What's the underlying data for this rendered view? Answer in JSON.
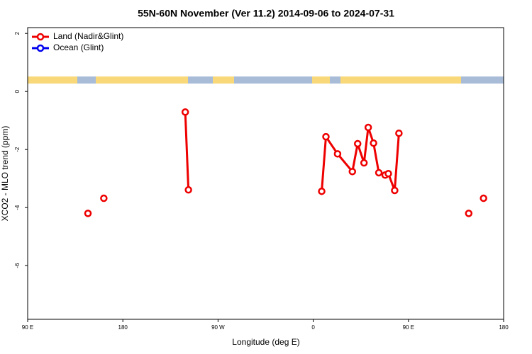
{
  "chart_data": {
    "type": "line",
    "title": "55N-60N November (Ver 11.2)   2014-09-06 to 2024-07-31",
    "xlabel": "Longitude (deg E)",
    "ylabel": "XCO2 - MLO trend (ppm)",
    "xlim": [
      -270,
      180
    ],
    "ylim": [
      -7.85,
      2.2
    ],
    "xticks": [
      {
        "value": -270,
        "label": "90 E"
      },
      {
        "value": -180,
        "label": "180"
      },
      {
        "value": -90,
        "label": "90 W"
      },
      0,
      {
        "value": 90,
        "label": "90 E"
      },
      180
    ],
    "yticks": [
      2,
      0,
      -2,
      -4,
      -6
    ],
    "legend": "top-left",
    "series": [
      {
        "name": "Land (Nadir&Glint)",
        "color": "#ee0000",
        "x": [
          -213,
          null,
          -198,
          null,
          -121,
          -118,
          null,
          8,
          12,
          23,
          37,
          42,
          48,
          52,
          57,
          62,
          68,
          71,
          77,
          81,
          null,
          147,
          null,
          161
        ],
        "values": [
          -4.2,
          null,
          -3.68,
          null,
          -0.71,
          -3.39,
          null,
          -3.44,
          -1.56,
          -2.15,
          -2.76,
          -1.8,
          -2.46,
          -1.24,
          -1.78,
          -2.8,
          -2.88,
          -2.83,
          -3.41,
          -1.44,
          null,
          -4.2,
          null,
          -3.68
        ]
      },
      {
        "name": "Ocean (Glint)",
        "color": "#0000ee",
        "x": [],
        "values": []
      }
    ]
  }
}
